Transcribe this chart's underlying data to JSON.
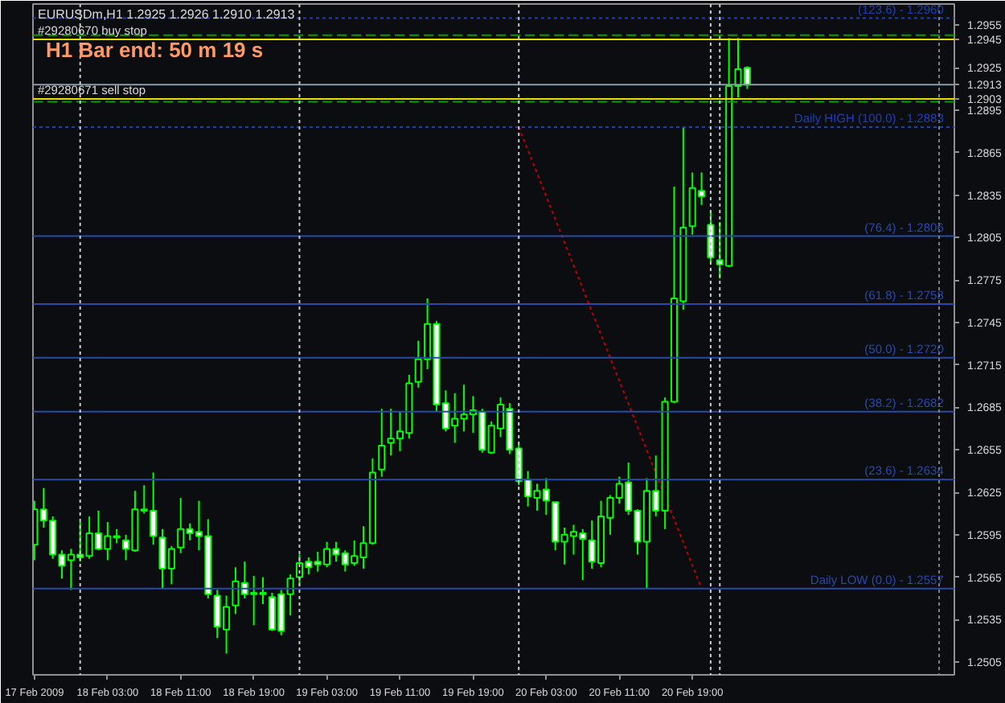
{
  "chart_data": {
    "type": "candlestick",
    "title": "EURUSDm,H1  1.2925 1.2926 1.2910 1.2913",
    "annotations": [
      "H1 Bar end: 50 m 19 s",
      {
        "text": "#29280670 buy stop",
        "x": "2009-02-17T19:00",
        "y": 1.2945
      },
      {
        "text": "#29280671 sell stop",
        "x": "2009-02-17T19:00",
        "y": 1.2903
      },
      {
        "text": "(123.6) - 1.2960",
        "x": "2009-02-21T22:30",
        "y": 1.296
      },
      {
        "text": "Daily HIGH (100.0) - 1.2883",
        "x": "2009-02-21T22:30",
        "y": 1.2883
      },
      {
        "text": "(76.4) - 1.2806",
        "x": "2009-02-21T22:30",
        "y": 1.2806
      },
      {
        "text": "(61.8) - 1.2758",
        "x": "2009-02-21T22:30",
        "y": 1.2758
      },
      {
        "text": "(50.0) - 1.2720",
        "x": "2009-02-21T22:30",
        "y": 1.272
      },
      {
        "text": "(38.2) - 1.2682",
        "x": "2009-02-21T22:30",
        "y": 1.2682
      },
      {
        "text": "(23.6) - 1.2634",
        "x": "2009-02-21T22:30",
        "y": 1.2634
      },
      {
        "text": "Daily LOW (0.0) - 1.2557",
        "x": "2009-02-21T22:30",
        "y": 1.2557
      }
    ],
    "color": "#00ff00",
    "x": [
      "2009-02-17T19:00",
      "2009-02-17T20:00",
      "2009-02-17T21:00",
      "2009-02-17T22:00",
      "2009-02-17T23:00",
      "2009-02-18T00:00",
      "2009-02-18T01:00",
      "2009-02-18T02:00",
      "2009-02-18T03:00",
      "2009-02-18T04:00",
      "2009-02-18T05:00",
      "2009-02-18T06:00",
      "2009-02-18T07:00",
      "2009-02-18T08:00",
      "2009-02-18T09:00",
      "2009-02-18T10:00",
      "2009-02-18T11:00",
      "2009-02-18T12:00",
      "2009-02-18T13:00",
      "2009-02-18T14:00",
      "2009-02-18T15:00",
      "2009-02-18T16:00",
      "2009-02-18T17:00",
      "2009-02-18T18:00",
      "2009-02-18T19:00",
      "2009-02-18T20:00",
      "2009-02-18T21:00",
      "2009-02-18T22:00",
      "2009-02-18T23:00",
      "2009-02-19T00:00",
      "2009-02-19T01:00",
      "2009-02-19T02:00",
      "2009-02-19T03:00",
      "2009-02-19T04:00",
      "2009-02-19T05:00",
      "2009-02-19T06:00",
      "2009-02-19T07:00",
      "2009-02-19T08:00",
      "2009-02-19T09:00",
      "2009-02-19T10:00",
      "2009-02-19T11:00",
      "2009-02-19T12:00",
      "2009-02-19T13:00",
      "2009-02-19T14:00",
      "2009-02-19T15:00",
      "2009-02-19T16:00",
      "2009-02-19T17:00",
      "2009-02-19T18:00",
      "2009-02-19T19:00",
      "2009-02-19T20:00",
      "2009-02-19T21:00",
      "2009-02-19T22:00",
      "2009-02-19T23:00",
      "2009-02-20T00:00",
      "2009-02-20T01:00",
      "2009-02-20T02:00",
      "2009-02-20T03:00",
      "2009-02-20T04:00",
      "2009-02-20T05:00",
      "2009-02-20T06:00",
      "2009-02-20T07:00",
      "2009-02-20T08:00",
      "2009-02-20T09:00",
      "2009-02-20T10:00",
      "2009-02-20T11:00",
      "2009-02-20T12:00",
      "2009-02-20T13:00",
      "2009-02-20T14:00",
      "2009-02-20T15:00",
      "2009-02-20T16:00",
      "2009-02-20T17:00",
      "2009-02-20T18:00",
      "2009-02-20T19:00",
      "2009-02-20T20:00",
      "2009-02-20T21:00",
      "2009-02-20T22:00",
      "2009-02-20T23:00",
      "2009-02-21T00:00",
      "2009-02-21T01:00"
    ],
    "ohlc": [
      [
        1.2588,
        1.2619,
        1.2577,
        1.2613
      ],
      [
        1.2613,
        1.2628,
        1.26,
        1.2605
      ],
      [
        1.2605,
        1.2608,
        1.2578,
        1.2581
      ],
      [
        1.2581,
        1.2584,
        1.2564,
        1.2573
      ],
      [
        1.2577,
        1.2585,
        1.2556,
        1.2581
      ],
      [
        1.2581,
        1.2604,
        1.2576,
        1.2579
      ],
      [
        1.258,
        1.2608,
        1.2578,
        1.2596
      ],
      [
        1.2596,
        1.2612,
        1.2584,
        1.2585
      ],
      [
        1.2585,
        1.2604,
        1.2577,
        1.2594
      ],
      [
        1.2594,
        1.2599,
        1.2589,
        1.2593
      ],
      [
        1.2591,
        1.2595,
        1.2577,
        1.2585
      ],
      [
        1.2584,
        1.2626,
        1.2583,
        1.2613
      ],
      [
        1.2613,
        1.263,
        1.261,
        1.2612
      ],
      [
        1.2612,
        1.2639,
        1.2588,
        1.2594
      ],
      [
        1.2593,
        1.2599,
        1.2557,
        1.2571
      ],
      [
        1.2571,
        1.2587,
        1.256,
        1.2585
      ],
      [
        1.2586,
        1.2621,
        1.2582,
        1.2599
      ],
      [
        1.2599,
        1.2603,
        1.2591,
        1.2596
      ],
      [
        1.2597,
        1.2619,
        1.2584,
        1.2594
      ],
      [
        1.2594,
        1.2606,
        1.255,
        1.2553
      ],
      [
        1.2552,
        1.2556,
        1.2522,
        1.253
      ],
      [
        1.2528,
        1.2552,
        1.2511,
        1.2544
      ],
      [
        1.2545,
        1.2572,
        1.2539,
        1.2562
      ],
      [
        1.2561,
        1.2576,
        1.255,
        1.2553
      ],
      [
        1.2554,
        1.2566,
        1.2531,
        1.2553
      ],
      [
        1.2554,
        1.2565,
        1.2546,
        1.2553
      ],
      [
        1.2551,
        1.2554,
        1.2527,
        1.2528
      ],
      [
        1.2553,
        1.2556,
        1.2524,
        1.2527
      ],
      [
        1.2553,
        1.2567,
        1.2538,
        1.2564
      ],
      [
        1.2565,
        1.2581,
        1.2559,
        1.2575
      ],
      [
        1.2576,
        1.2579,
        1.2567,
        1.2572
      ],
      [
        1.2576,
        1.2583,
        1.2569,
        1.2574
      ],
      [
        1.2574,
        1.259,
        1.2572,
        1.2585
      ],
      [
        1.2585,
        1.259,
        1.2576,
        1.2581
      ],
      [
        1.2582,
        1.2584,
        1.2569,
        1.2574
      ],
      [
        1.2575,
        1.2591,
        1.2573,
        1.258
      ],
      [
        1.2579,
        1.2601,
        1.2571,
        1.2589
      ],
      [
        1.2589,
        1.2649,
        1.2588,
        1.2639
      ],
      [
        1.2641,
        1.2684,
        1.2636,
        1.2658
      ],
      [
        1.266,
        1.2684,
        1.2651,
        1.2663
      ],
      [
        1.2663,
        1.2682,
        1.2654,
        1.2668
      ],
      [
        1.2667,
        1.2708,
        1.2663,
        1.2702
      ],
      [
        1.2703,
        1.2732,
        1.2699,
        1.2719
      ],
      [
        1.2719,
        1.2762,
        1.2712,
        1.2744
      ],
      [
        1.2744,
        1.2746,
        1.2682,
        1.2687
      ],
      [
        1.2688,
        1.2697,
        1.2668,
        1.267
      ],
      [
        1.2672,
        1.2695,
        1.266,
        1.2677
      ],
      [
        1.2677,
        1.2701,
        1.2668,
        1.268
      ],
      [
        1.268,
        1.2693,
        1.2667,
        1.2683
      ],
      [
        1.2682,
        1.2684,
        1.2653,
        1.2655
      ],
      [
        1.2653,
        1.2675,
        1.2652,
        1.2672
      ],
      [
        1.267,
        1.2692,
        1.2664,
        1.2687
      ],
      [
        1.2684,
        1.2688,
        1.2652,
        1.2655
      ],
      [
        1.2656,
        1.2659,
        1.263,
        1.2633
      ],
      [
        1.2634,
        1.264,
        1.2615,
        1.2622
      ],
      [
        1.2621,
        1.2631,
        1.2612,
        1.2626
      ],
      [
        1.2627,
        1.2635,
        1.2609,
        1.2619
      ],
      [
        1.2618,
        1.2618,
        1.2584,
        1.259
      ],
      [
        1.259,
        1.26,
        1.2574,
        1.2595
      ],
      [
        1.2594,
        1.2602,
        1.2581,
        1.2597
      ],
      [
        1.2596,
        1.2599,
        1.2563,
        1.2592
      ],
      [
        1.2591,
        1.2605,
        1.2571,
        1.2576
      ],
      [
        1.2575,
        1.2619,
        1.2572,
        1.2608
      ],
      [
        1.2607,
        1.2623,
        1.2595,
        1.2621
      ],
      [
        1.2621,
        1.2636,
        1.2617,
        1.2631
      ],
      [
        1.2632,
        1.2646,
        1.2609,
        1.2612
      ],
      [
        1.2612,
        1.2613,
        1.2581,
        1.259
      ],
      [
        1.259,
        1.2635,
        1.2557,
        1.2626
      ],
      [
        1.2626,
        1.2651,
        1.2608,
        1.2612
      ],
      [
        1.2612,
        1.2692,
        1.2599,
        1.2689
      ],
      [
        1.2689,
        1.2841,
        1.2688,
        1.2762
      ],
      [
        1.276,
        1.2883,
        1.2754,
        1.2812
      ],
      [
        1.2813,
        1.2851,
        1.2807,
        1.284
      ],
      [
        1.2838,
        1.2851,
        1.2828,
        1.2834
      ],
      [
        1.2814,
        1.2824,
        1.2786,
        1.2791
      ],
      [
        1.2789,
        1.2816,
        1.2776,
        1.2786
      ],
      [
        1.2785,
        1.2946,
        1.2784,
        1.2912
      ],
      [
        1.2912,
        1.2946,
        1.2904,
        1.2924
      ],
      [
        1.2925,
        1.2926,
        1.291,
        1.2913
      ]
    ],
    "series": [
      {
        "type": "line",
        "color": "#c00000",
        "line_style": "dotted",
        "x": [
          "2009-02-20T00:00",
          "2009-02-20T20:00"
        ],
        "values": [
          1.2883,
          1.2557
        ]
      }
    ],
    "ref_lines": [
      {
        "axis": "y",
        "value": 1.2945,
        "color": "#e0e000",
        "line_style": "solid"
      },
      {
        "axis": "y",
        "value": 1.2948,
        "color": "#00a000",
        "line_style": "dashed"
      },
      {
        "axis": "y",
        "value": 1.2903,
        "color": "#e0e000",
        "line_style": "solid"
      },
      {
        "axis": "y",
        "value": 1.2901,
        "color": "#00a000",
        "line_style": "dashed"
      },
      {
        "axis": "y",
        "value": 1.2913,
        "color": "#8c9aa8",
        "line_style": "solid"
      },
      {
        "axis": "y",
        "value": 1.296,
        "color": "#2040b0",
        "line_style": "dotted"
      },
      {
        "axis": "y",
        "value": 1.2883,
        "color": "#2040b0",
        "line_style": "dotted"
      },
      {
        "axis": "y",
        "value": 1.2806,
        "color": "#2a4aa8",
        "line_style": "solid"
      },
      {
        "axis": "y",
        "value": 1.2758,
        "color": "#2a4aa8",
        "line_style": "solid"
      },
      {
        "axis": "y",
        "value": 1.272,
        "color": "#2a4aa8",
        "line_style": "solid"
      },
      {
        "axis": "y",
        "value": 1.2682,
        "color": "#2a4aa8",
        "line_style": "solid"
      },
      {
        "axis": "y",
        "value": 1.2634,
        "color": "#2a4aa8",
        "line_style": "solid"
      },
      {
        "axis": "y",
        "value": 1.2557,
        "color": "#2a4aa8",
        "line_style": "solid"
      },
      {
        "axis": "x",
        "value": "2009-02-18T00:00",
        "color": "#c8c8c8",
        "line_style": "dotted"
      },
      {
        "axis": "x",
        "value": "2009-02-19T00:00",
        "color": "#c8c8c8",
        "line_style": "dotted"
      },
      {
        "axis": "x",
        "value": "2009-02-20T00:00",
        "color": "#c8c8c8",
        "line_style": "dotted"
      },
      {
        "axis": "x",
        "value": "2009-02-20T21:00",
        "color": "#c8c8c8",
        "line_style": "dotted"
      },
      {
        "axis": "x",
        "value": "2009-02-20T22:00",
        "color": "#c8c8c8",
        "line_style": "dotted"
      },
      {
        "axis": "x",
        "value": "2009-02-21T22:00",
        "color": "#808080",
        "line_style": "dotted"
      }
    ],
    "xlim": [
      "2009-02-17T18:50",
      "2009-02-21T23:40"
    ],
    "xticks": [
      {
        "value": "2009-02-17T19:00",
        "label": "17 Feb 2009"
      },
      {
        "value": "2009-02-18T03:00",
        "label": "18 Feb 03:00"
      },
      {
        "value": "2009-02-18T11:00",
        "label": "18 Feb 11:00"
      },
      {
        "value": "2009-02-18T19:00",
        "label": "18 Feb 19:00"
      },
      {
        "value": "2009-02-19T03:00",
        "label": "19 Feb 03:00"
      },
      {
        "value": "2009-02-19T11:00",
        "label": "19 Feb 11:00"
      },
      {
        "value": "2009-02-19T19:00",
        "label": "19 Feb 19:00"
      },
      {
        "value": "2009-02-20T03:00",
        "label": "20 Feb 03:00"
      },
      {
        "value": "2009-02-20T11:00",
        "label": "20 Feb 11:00"
      },
      {
        "value": "2009-02-20T19:00",
        "label": "20 Feb 19:00"
      }
    ],
    "ylim": [
      1.2496,
      1.297
    ],
    "yticks": [
      1.2505,
      1.2535,
      1.2565,
      1.2595,
      1.2625,
      1.2655,
      1.2685,
      1.2715,
      1.2745,
      1.2775,
      1.2805,
      1.2835,
      1.2865,
      1.2895,
      1.2903,
      1.2913,
      1.2925,
      1.2945,
      1.2955
    ],
    "grid": false
  }
}
